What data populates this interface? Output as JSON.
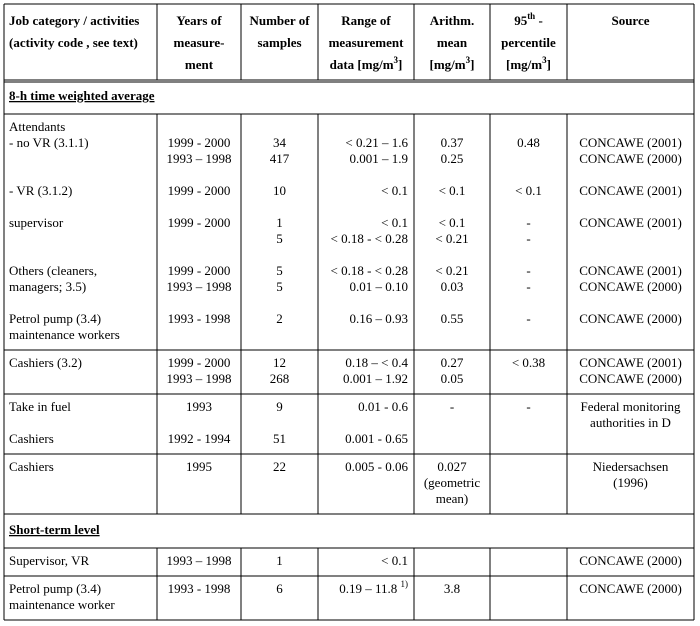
{
  "header": {
    "columns": [
      [
        "Job category / activities",
        "(activity code , see text)"
      ],
      [
        "Years of",
        "measure-",
        "ment"
      ],
      [
        "Number of",
        "samples"
      ],
      [
        "Range of",
        "measurement",
        [
          "data [mg/m",
          {
            "sup": "3"
          },
          "]"
        ]
      ],
      [
        "Arithm.",
        "mean",
        [
          "[mg/m",
          {
            "sup": "3"
          },
          "]"
        ]
      ],
      [
        [
          "95",
          {
            "sup": "th"
          },
          " -"
        ],
        "percentile",
        [
          "[mg/m",
          {
            "sup": "3"
          },
          "]"
        ]
      ],
      [
        "Source"
      ]
    ]
  },
  "body": [
    {
      "section": "8-h time weighted average"
    },
    {
      "lines": [
        [
          "Attendants",
          null,
          null,
          null,
          null,
          null,
          null
        ],
        [
          "- no VR (3.1.1)",
          "1999 - 2000",
          "34",
          "< 0.21 – 1.6",
          "0.37",
          "0.48",
          "CONCAWE (2001)"
        ],
        [
          null,
          "1993 – 1998",
          "417",
          "0.001 – 1.9",
          "0.25",
          null,
          "CONCAWE (2000)"
        ],
        null,
        [
          "- VR (3.1.2)",
          "1999 - 2000",
          "10",
          "< 0.1",
          "< 0.1",
          "< 0.1",
          "CONCAWE (2001)"
        ],
        null,
        [
          "supervisor",
          "1999 - 2000",
          "1",
          "< 0.1",
          "< 0.1",
          "-",
          "CONCAWE (2001)"
        ],
        [
          null,
          null,
          "5",
          "< 0.18 - < 0.28",
          "< 0.21",
          "-",
          null
        ],
        null,
        [
          "Others (cleaners,",
          "1999 - 2000",
          "5",
          "< 0.18 - < 0.28",
          "< 0.21",
          "-",
          "CONCAWE (2001)"
        ],
        [
          "managers; 3.5)",
          "1993 – 1998",
          "5",
          "0.01 – 0.10",
          "0.03",
          "-",
          "CONCAWE (2000)"
        ],
        null,
        [
          "Petrol pump (3.4)",
          "1993 - 1998",
          "2",
          "0.16 – 0.93",
          "0.55",
          "-",
          "CONCAWE (2000)"
        ],
        [
          "maintenance workers",
          null,
          null,
          null,
          null,
          null,
          null
        ]
      ]
    },
    {
      "lines": [
        [
          "Cashiers (3.2)",
          "1999 - 2000",
          "12",
          "0.18 – < 0.4",
          "0.27",
          "< 0.38",
          "CONCAWE (2001)"
        ],
        [
          null,
          "1993 – 1998",
          "268",
          "0.001 – 1.92",
          "0.05",
          null,
          "CONCAWE (2000)"
        ]
      ]
    },
    {
      "lines": [
        [
          "Take in fuel",
          "1993",
          "9",
          "0.01 - 0.6",
          "-",
          "-",
          "Federal monitoring"
        ],
        [
          null,
          null,
          null,
          null,
          null,
          null,
          "authorities in D"
        ],
        [
          "Cashiers",
          "1992 - 1994",
          "51",
          "0.001 - 0.65",
          null,
          null,
          null
        ]
      ]
    },
    {
      "lines": [
        [
          "Cashiers",
          "1995",
          "22",
          "0.005 - 0.06",
          "0.027",
          null,
          "Niedersachsen"
        ],
        [
          null,
          null,
          null,
          null,
          "(geometric",
          null,
          "(1996)"
        ],
        [
          null,
          null,
          null,
          null,
          "mean)",
          null,
          null
        ]
      ]
    },
    {
      "section": "Short-term level"
    },
    {
      "lines": [
        [
          "Supervisor, VR",
          "1993 – 1998",
          "1",
          "< 0.1",
          null,
          null,
          "CONCAWE (2000)"
        ]
      ]
    },
    {
      "lines": [
        [
          "Petrol pump (3.4)",
          "1993 - 1998",
          "6",
          [
            "0.19 – 11.8 ",
            {
              "sup": "1)"
            }
          ],
          "3.8",
          null,
          "CONCAWE (2000)"
        ],
        [
          "maintenance worker",
          null,
          null,
          null,
          null,
          null,
          null
        ]
      ]
    }
  ]
}
